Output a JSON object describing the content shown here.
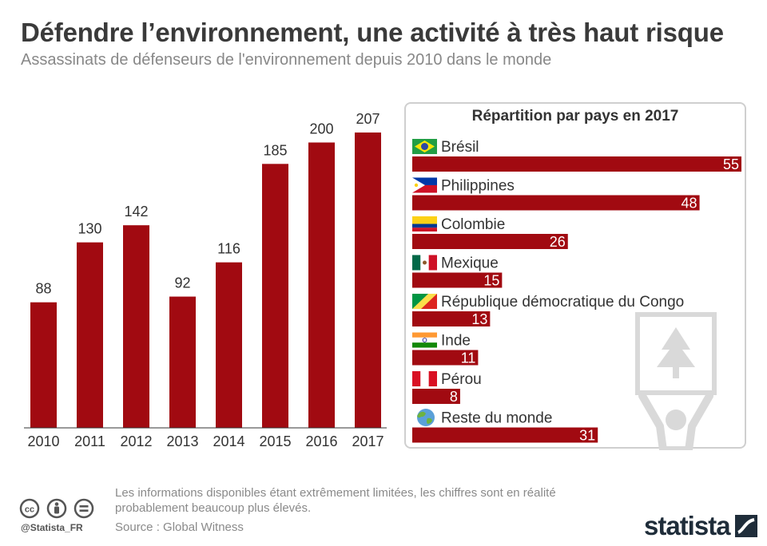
{
  "header": {
    "title": "Défendre l’environnement, une activité à très haut risque",
    "subtitle": "Assassinats de défenseurs de l'environnement depuis 2010 dans le monde"
  },
  "chart_data": [
    {
      "type": "bar",
      "categories": [
        "2010",
        "2011",
        "2012",
        "2013",
        "2014",
        "2015",
        "2016",
        "2017"
      ],
      "values": [
        88,
        130,
        142,
        92,
        116,
        185,
        200,
        207
      ],
      "title": "",
      "xlabel": "",
      "ylabel": "",
      "ylim": [
        0,
        207
      ],
      "grid": false,
      "color": "#a10a11"
    },
    {
      "type": "bar",
      "orientation": "horizontal",
      "title": "Répartition par pays en 2017",
      "categories": [
        "Brésil",
        "Philippines",
        "Colombie",
        "Mexique",
        "République démocratique du Congo",
        "Inde",
        "Pérou",
        "Reste du monde"
      ],
      "values": [
        55,
        48,
        26,
        15,
        13,
        11,
        8,
        31
      ],
      "flags": [
        "brazil-flag-icon",
        "philippines-flag-icon",
        "colombia-flag-icon",
        "mexico-flag-icon",
        "congo-flag-icon",
        "india-flag-icon",
        "peru-flag-icon",
        "globe-icon"
      ],
      "xlim": [
        0,
        55
      ],
      "color": "#a10a11"
    }
  ],
  "footer": {
    "note": "Les informations disponibles étant extrêmement limitées, les chiffres sont en réalité probablement beaucoup plus élevés.",
    "source": "Source : Global Witness",
    "handle": "@Statista_FR",
    "logo": "statista",
    "license_icons": [
      "cc-icon",
      "by-icon",
      "nd-icon"
    ]
  }
}
